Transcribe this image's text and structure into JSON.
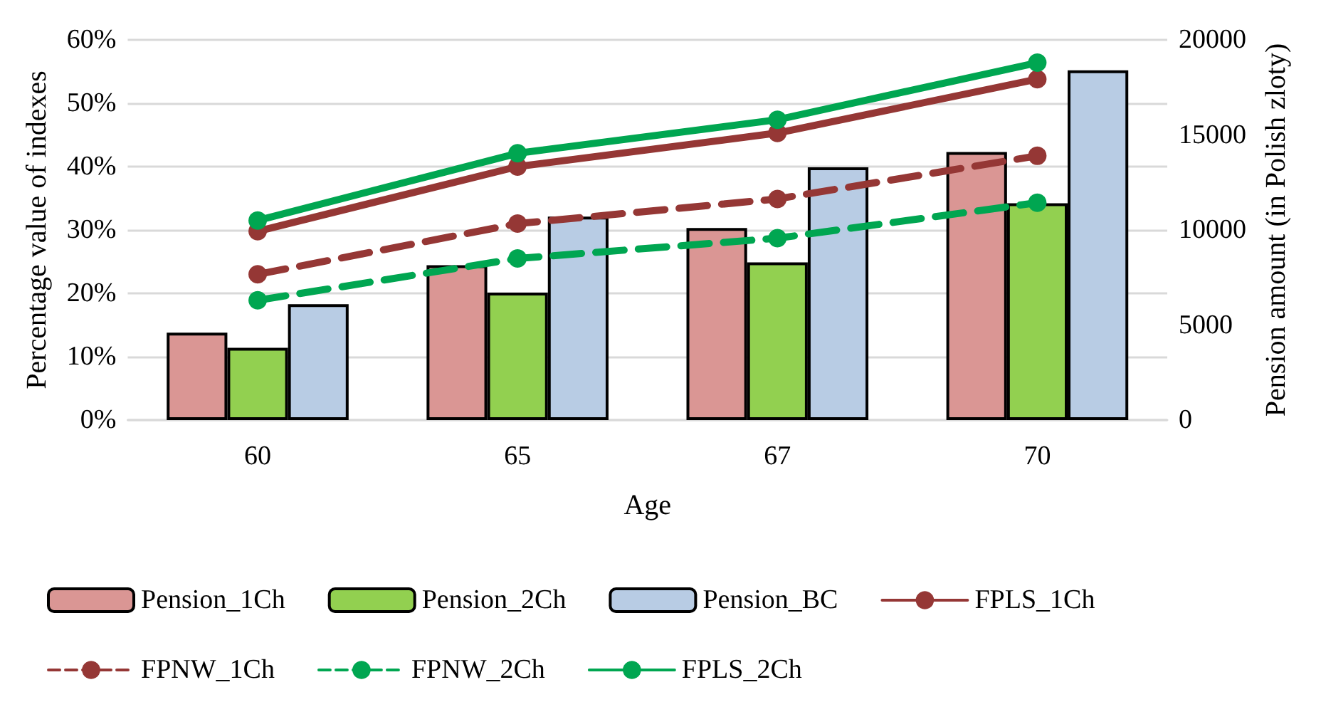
{
  "chart_data": {
    "type": "bar",
    "xlabel": "Age",
    "ylabel": "Percentage value of indexes",
    "y2label": "Pension amount (in Polish zloty)",
    "categories": [
      "60",
      "65",
      "67",
      "70"
    ],
    "series": [
      {
        "name": "Pension_1Ch",
        "axis": "y2",
        "color": "#da9694",
        "values": [
          4600,
          8150,
          10100,
          14100
        ]
      },
      {
        "name": "Pension_2Ch",
        "axis": "y2",
        "color": "#92d050",
        "values": [
          3800,
          6700,
          8300,
          11400
        ]
      },
      {
        "name": "Pension_BC",
        "axis": "y2",
        "color": "#b8cce4",
        "values": [
          6100,
          10700,
          13300,
          18400
        ]
      },
      {
        "name": "FPLS_1Ch",
        "type": "line",
        "color": "#953735",
        "line_style": "solid",
        "values": [
          29.8,
          40,
          45.3,
          53.8
        ]
      },
      {
        "name": "FPNW_1Ch",
        "type": "line",
        "color": "#953735",
        "line_style": "dashed",
        "values": [
          23,
          31,
          34.9,
          41.7
        ]
      },
      {
        "name": "FPNW_2Ch",
        "type": "line",
        "color": "#00a651",
        "line_style": "dashed",
        "values": [
          18.9,
          25.5,
          28.7,
          34.3
        ]
      },
      {
        "name": "FPLS_2Ch",
        "type": "line",
        "color": "#00a651",
        "line_style": "solid",
        "values": [
          31.5,
          42.1,
          47.4,
          56.4
        ]
      }
    ],
    "ylim": [
      0,
      60
    ],
    "yticks": [
      {
        "value": 0,
        "label": "0%"
      },
      {
        "value": 10,
        "label": "10%"
      },
      {
        "value": 20,
        "label": "20%"
      },
      {
        "value": 30,
        "label": "30%"
      },
      {
        "value": 40,
        "label": "40%"
      },
      {
        "value": 50,
        "label": "50%"
      },
      {
        "value": 60,
        "label": "60%"
      }
    ],
    "y2lim": [
      0,
      20000
    ],
    "y2ticks": [
      0,
      5000,
      10000,
      15000,
      20000
    ],
    "grid": "y",
    "legend": "bottom",
    "marker": "circle"
  }
}
